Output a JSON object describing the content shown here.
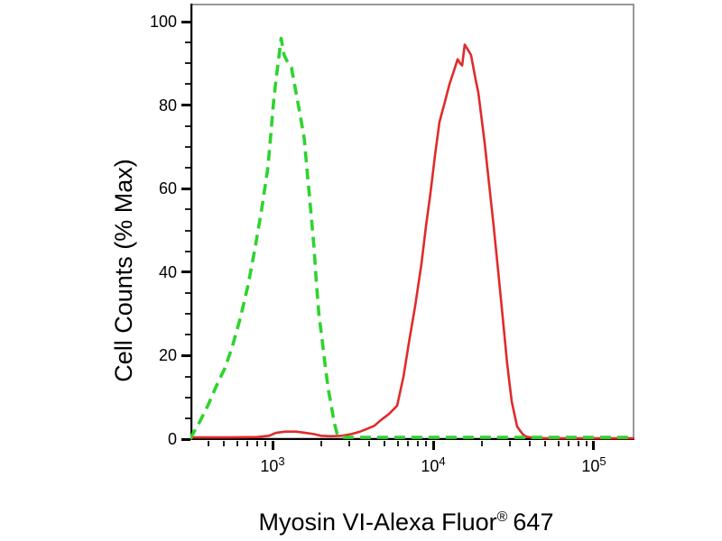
{
  "chart_data": {
    "type": "line",
    "title": "",
    "x_scale": "log",
    "xlim": [
      308,
      179000
    ],
    "ylim": [
      0,
      100
    ],
    "grid": false,
    "legend": "none",
    "xlabel": {
      "main": "Myosin VI-Alexa Fluor",
      "sup": "®",
      "tail": "647"
    },
    "ylabel": "Cell Counts (% Max)",
    "colors": {
      "axis": "#000000",
      "frame_top_right": "#999999",
      "background": "#ffffff",
      "green_curve": "#2fd32f",
      "red_curve": "#e12a2a"
    },
    "axes": {
      "y_major_ticks": [
        {
          "v": 0,
          "label": "0"
        },
        {
          "v": 20,
          "label": "20"
        },
        {
          "v": 40,
          "label": "40"
        },
        {
          "v": 60,
          "label": "60"
        },
        {
          "v": 80,
          "label": "80"
        },
        {
          "v": 100,
          "label": "100"
        }
      ],
      "y_minor_tick_values": [
        5,
        10,
        15,
        25,
        30,
        35,
        45,
        50,
        55,
        65,
        70,
        75,
        85,
        90,
        95
      ],
      "x_major_ticks": [
        {
          "v": 1000,
          "base": "10",
          "exp": "3"
        },
        {
          "v": 10000,
          "base": "10",
          "exp": "4"
        },
        {
          "v": 100000,
          "base": "10",
          "exp": "5"
        }
      ],
      "x_minor_tick_values": [
        400,
        500,
        600,
        700,
        800,
        900,
        2000,
        3000,
        4000,
        5000,
        6000,
        7000,
        8000,
        9000,
        20000,
        30000,
        40000,
        50000,
        60000,
        70000,
        80000,
        90000
      ]
    },
    "series": [
      {
        "name": "red-solid",
        "style": "solid",
        "color": "#e12a2a",
        "stroke_width": 2.6,
        "dash": "",
        "points": [
          [
            308,
            0.4
          ],
          [
            500,
            0.4
          ],
          [
            800,
            0.5
          ],
          [
            950,
            0.8
          ],
          [
            1050,
            1.5
          ],
          [
            1200,
            1.8
          ],
          [
            1400,
            1.8
          ],
          [
            1600,
            1.5
          ],
          [
            1800,
            1.2
          ],
          [
            2000,
            0.8
          ],
          [
            2300,
            0.7
          ],
          [
            2700,
            0.8
          ],
          [
            3100,
            1.2
          ],
          [
            3500,
            1.8
          ],
          [
            3900,
            2.5
          ],
          [
            4300,
            3.2
          ],
          [
            4700,
            4.5
          ],
          [
            5300,
            6
          ],
          [
            5960,
            8
          ],
          [
            6530,
            15
          ],
          [
            7050,
            23
          ],
          [
            7730,
            32
          ],
          [
            8450,
            42
          ],
          [
            9020,
            51
          ],
          [
            9620,
            59
          ],
          [
            10260,
            68
          ],
          [
            10940,
            76
          ],
          [
            11670,
            80
          ],
          [
            12620,
            85
          ],
          [
            13400,
            88
          ],
          [
            14190,
            91
          ],
          [
            14700,
            90
          ],
          [
            15140,
            89.5
          ],
          [
            15700,
            94.5
          ],
          [
            16300,
            93.5
          ],
          [
            17200,
            92
          ],
          [
            18400,
            86
          ],
          [
            19100,
            83
          ],
          [
            20900,
            71
          ],
          [
            22300,
            61
          ],
          [
            23800,
            51
          ],
          [
            25400,
            40
          ],
          [
            27100,
            29
          ],
          [
            28900,
            18
          ],
          [
            30800,
            9
          ],
          [
            33300,
            3
          ],
          [
            36000,
            1.2
          ],
          [
            37900,
            0.6
          ],
          [
            42000,
            0.3
          ],
          [
            50000,
            0.2
          ],
          [
            70000,
            0.2
          ],
          [
            110000,
            0.2
          ],
          [
            179000,
            0.2
          ]
        ]
      },
      {
        "name": "green-dashed",
        "style": "dashed",
        "color": "#2fd32f",
        "stroke_width": 3.6,
        "dash": "12 7",
        "points": [
          [
            308,
            0
          ],
          [
            316,
            1
          ],
          [
            350,
            4
          ],
          [
            395,
            8
          ],
          [
            450,
            13
          ],
          [
            505,
            17
          ],
          [
            560,
            22
          ],
          [
            630,
            29
          ],
          [
            705,
            37
          ],
          [
            780,
            46
          ],
          [
            855,
            55
          ],
          [
            935,
            65
          ],
          [
            975,
            73
          ],
          [
            1015,
            81
          ],
          [
            1050,
            86
          ],
          [
            1090,
            91
          ],
          [
            1130,
            96
          ],
          [
            1180,
            92
          ],
          [
            1250,
            90
          ],
          [
            1310,
            89
          ],
          [
            1400,
            83
          ],
          [
            1480,
            78
          ],
          [
            1575,
            72
          ],
          [
            1660,
            62
          ],
          [
            1700,
            58
          ],
          [
            1810,
            46
          ],
          [
            1870,
            38
          ],
          [
            1940,
            30
          ],
          [
            2030,
            24
          ],
          [
            2120,
            18
          ],
          [
            2220,
            12
          ],
          [
            2320,
            8
          ],
          [
            2420,
            4
          ],
          [
            2510,
            1.5
          ],
          [
            2650,
            0.5
          ],
          [
            2900,
            0.4
          ],
          [
            3500,
            0.4
          ],
          [
            4500,
            0.4
          ],
          [
            6000,
            0.4
          ],
          [
            8000,
            0.4
          ],
          [
            11000,
            0.4
          ],
          [
            16000,
            0.4
          ],
          [
            24000,
            0.4
          ],
          [
            40000,
            0.4
          ],
          [
            70000,
            0.4
          ],
          [
            120000,
            0.4
          ],
          [
            179000,
            0.4
          ]
        ]
      }
    ]
  }
}
